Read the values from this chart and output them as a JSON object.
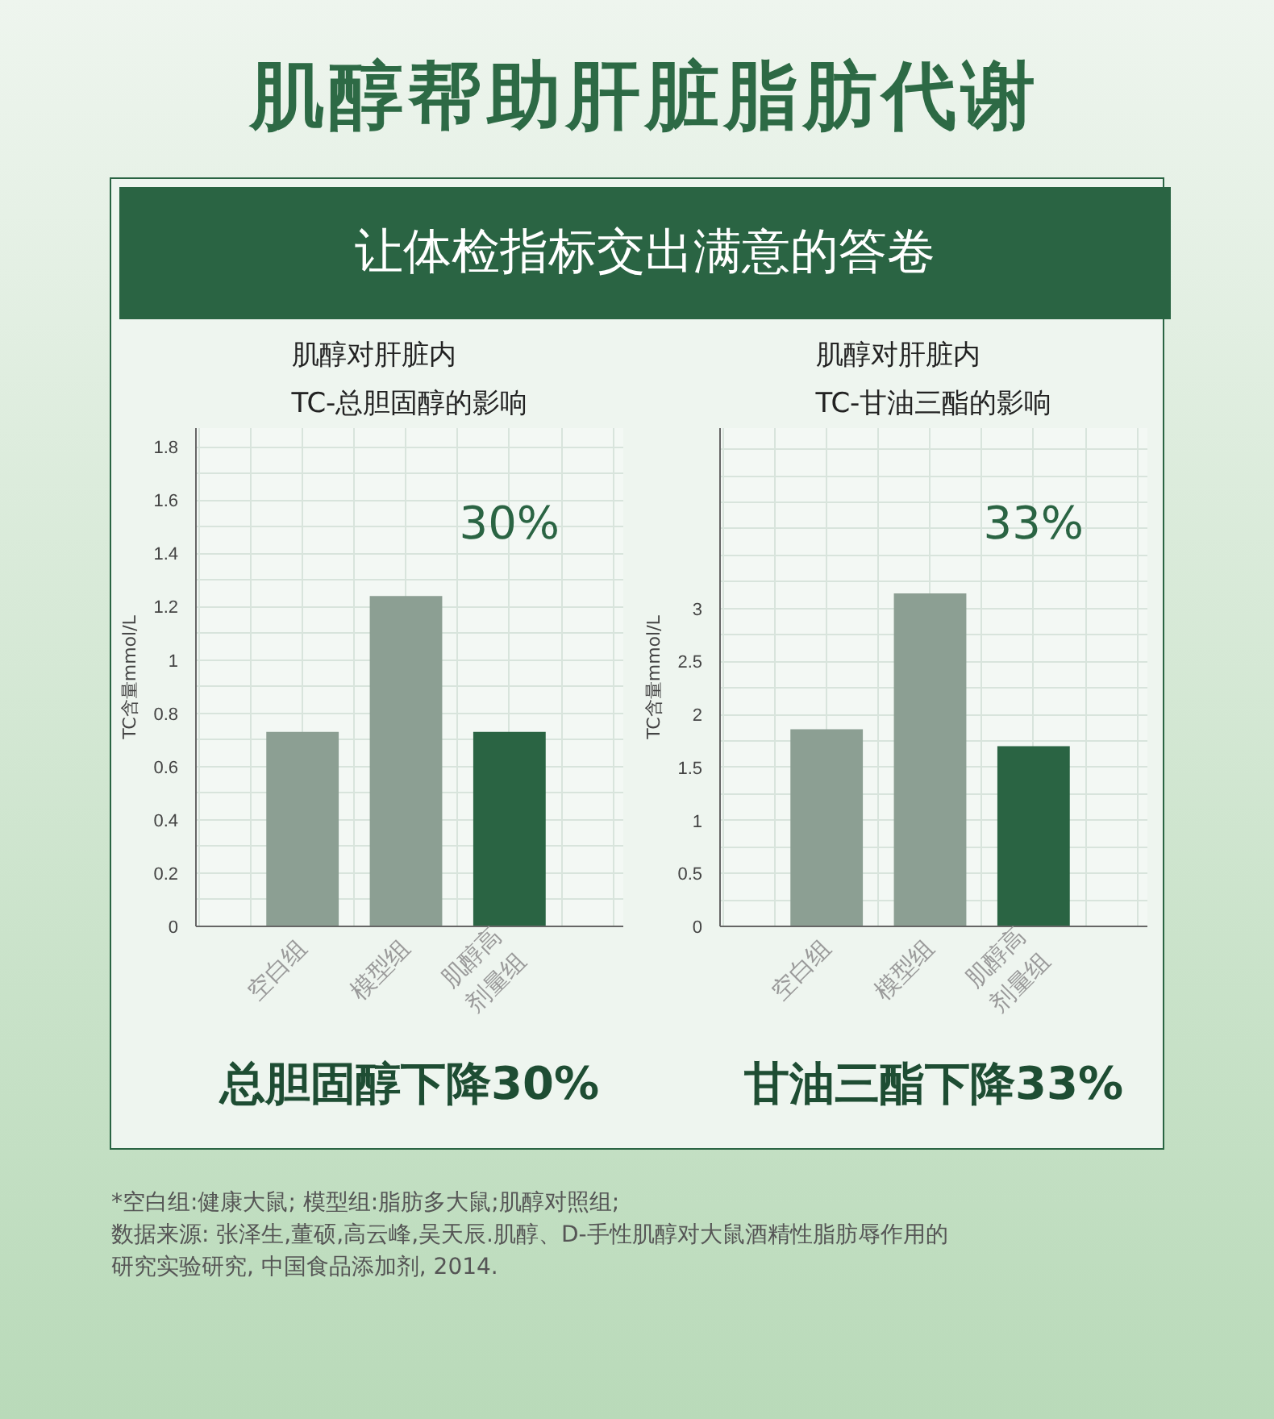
{
  "chart_data": [
    {
      "type": "bar",
      "title": "肌醇对肝脏内\nTC-总胆固醇的影响",
      "ylabel": "TC含量mmol/L",
      "categories": [
        "空白组",
        "模型组",
        "肌醇高\n剂量组"
      ],
      "colors": [
        "#8c9f93",
        "#8c9f93",
        "#2a6443"
      ],
      "values": [
        0.73,
        1.24,
        0.73
      ],
      "ylim": [
        0,
        1.87
      ],
      "yticks": [
        0,
        0.2,
        0.4,
        0.6,
        0.8,
        1,
        1.2,
        1.4,
        1.6,
        1.8
      ],
      "grid": true,
      "annotations": [
        "肌醇帮助肝脏脂肪代谢",
        "让体检指标交出满意的答卷",
        "30%",
        "总胆固醇下降30%"
      ]
    },
    {
      "type": "bar",
      "title": "肌醇对肝脏内\nTC-甘油三酯的影响",
      "ylabel": "TC含量mmol/L",
      "categories": [
        "空白组",
        "模型组",
        "肌醇高\n剂量组"
      ],
      "colors": [
        "#8c9f93",
        "#8c9f93",
        "#2a6443"
      ],
      "values": [
        1.86,
        3.14,
        1.7
      ],
      "ylim": [
        0,
        4.7
      ],
      "yticks": [
        0,
        0.5,
        1,
        1.5,
        2,
        2.5,
        3
      ],
      "grid": true,
      "annotations": [
        "33%",
        "甘油三酯下降33%",
        "*空白组:健康大鼠; 模型组:脂肪多大鼠;肌醇对照组;",
        "数据来源: 张泽生,董硕,高云峰,吴天辰.肌醇、D-手性肌醇对大鼠酒精性脂肪辱作用的研究实验研究, 中国食品添加剂, 2014."
      ]
    }
  ]
}
